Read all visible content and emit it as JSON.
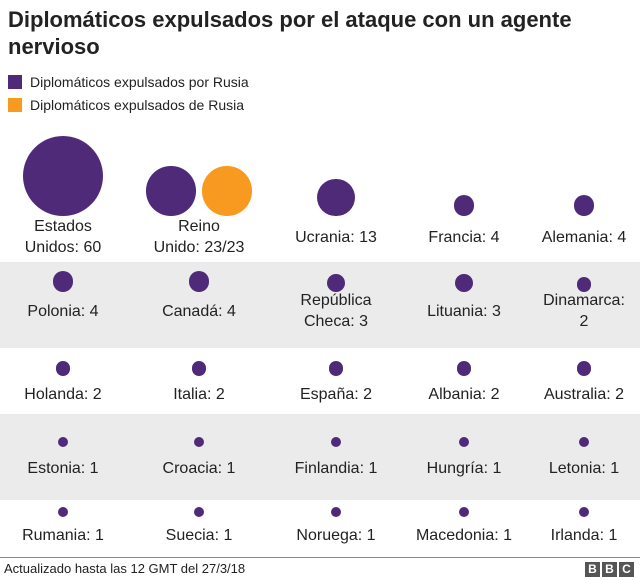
{
  "colors": {
    "expelled_by_russia": "#4f2a79",
    "expelled_from_russia": "#f79a1f",
    "band": "#ebebeb"
  },
  "chart_data": {
    "type": "bubble-grid",
    "title": "Diplomáticos expulsados por el ataque con un agente nervioso",
    "legend": [
      {
        "name": "Diplomáticos expulsados por Rusia",
        "color": "#4f2a79"
      },
      {
        "name": "Diplomáticos expulsados de Rusia",
        "color": "#f79a1f"
      }
    ],
    "items": [
      {
        "label": "Estados\nUnidos: 60",
        "expelled_from_russia": 60
      },
      {
        "label": "Reino\nUnido: 23/23",
        "expelled_from_russia": 23,
        "expelled_by_russia": 23
      },
      {
        "label": "Ucrania: 13",
        "expelled_from_russia": 13
      },
      {
        "label": "Francia: 4",
        "expelled_from_russia": 4
      },
      {
        "label": "Alemania: 4",
        "expelled_from_russia": 4
      },
      {
        "label": "Polonia: 4",
        "expelled_from_russia": 4
      },
      {
        "label": "Canadá: 4",
        "expelled_from_russia": 4
      },
      {
        "label": "República\nCheca: 3",
        "expelled_from_russia": 3
      },
      {
        "label": "Lituania: 3",
        "expelled_from_russia": 3
      },
      {
        "label": "Dinamarca:\n2",
        "expelled_from_russia": 2
      },
      {
        "label": "Holanda: 2",
        "expelled_from_russia": 2
      },
      {
        "label": "Italia: 2",
        "expelled_from_russia": 2
      },
      {
        "label": "España: 2",
        "expelled_from_russia": 2
      },
      {
        "label": "Albania: 2",
        "expelled_from_russia": 2
      },
      {
        "label": "Australia: 2",
        "expelled_from_russia": 2
      },
      {
        "label": "Estonia: 1",
        "expelled_from_russia": 1
      },
      {
        "label": "Croacia: 1",
        "expelled_from_russia": 1
      },
      {
        "label": "Finlandia: 1",
        "expelled_from_russia": 1
      },
      {
        "label": "Hungría: 1",
        "expelled_from_russia": 1
      },
      {
        "label": "Letonia: 1",
        "expelled_from_russia": 1
      },
      {
        "label": "Rumania: 1",
        "expelled_from_russia": 1
      },
      {
        "label": "Suecia: 1",
        "expelled_from_russia": 1
      },
      {
        "label": "Noruega: 1",
        "expelled_from_russia": 1
      },
      {
        "label": "Macedonia: 1",
        "expelled_from_russia": 1
      },
      {
        "label": "Irlanda: 1",
        "expelled_from_russia": 1
      }
    ]
  },
  "footer": {
    "note": "Actualizado hasta las 12 GMT del 27/3/18",
    "logo": [
      "B",
      "B",
      "C"
    ]
  }
}
